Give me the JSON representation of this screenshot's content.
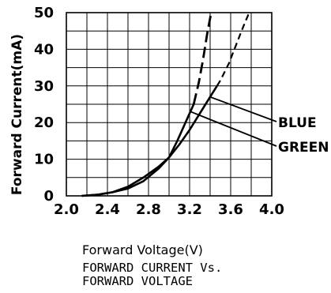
{
  "chart_data": {
    "type": "line",
    "title": "FORWARD CURRENT Vs. FORWARD VOLTAGE",
    "title_lines": [
      "FORWARD CURRENT Vs.",
      "FORWARD VOLTAGE"
    ],
    "xlabel": "Forward Voltage(V)",
    "ylabel": "Forward Current(mA)",
    "xlim": [
      2.0,
      4.0
    ],
    "ylim": [
      0,
      50
    ],
    "x_ticks": [
      "2.0",
      "2.4",
      "2.8",
      "3.2",
      "3.6",
      "4.0"
    ],
    "y_ticks": [
      "0",
      "10",
      "20",
      "30",
      "40",
      "50"
    ],
    "grid": true,
    "series": [
      {
        "name": "BLUE",
        "style": "solid-then-dashed",
        "solid_until_y": 30,
        "x": [
          2.15,
          2.3,
          2.45,
          2.6,
          2.75,
          2.9,
          3.0,
          3.1,
          3.2,
          3.3,
          3.4,
          3.5,
          3.58,
          3.65,
          3.72,
          3.78,
          3.82
        ],
        "values": [
          0,
          0.3,
          1,
          2.5,
          5,
          8,
          10.5,
          14,
          18,
          22.5,
          27,
          31.5,
          36,
          41,
          46,
          50,
          53
        ]
      },
      {
        "name": "GREEN",
        "style": "solid-then-dashed",
        "solid_until_y": 25,
        "x": [
          2.15,
          2.3,
          2.45,
          2.6,
          2.75,
          2.9,
          3.0,
          3.08,
          3.16,
          3.24,
          3.29,
          3.33,
          3.37,
          3.41
        ],
        "values": [
          0,
          0.3,
          1,
          2,
          4,
          7.5,
          10.5,
          15,
          20,
          25,
          31,
          37,
          44,
          50
        ]
      }
    ],
    "legend": [
      {
        "label": "BLUE",
        "placement": "right"
      },
      {
        "label": "GREEN",
        "placement": "right"
      }
    ]
  }
}
